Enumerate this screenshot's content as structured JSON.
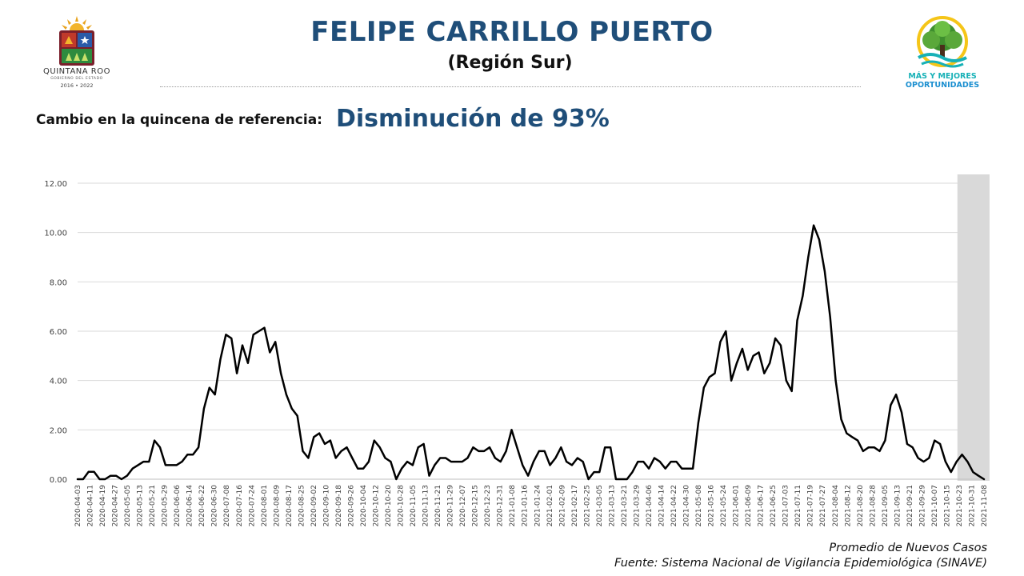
{
  "header": {
    "title": "FELIPE CARRILLO PUERTO",
    "subtitle": "(Región Sur)"
  },
  "logo_left": {
    "name": "QUINTANA ROO",
    "sub": "GOBIERNO DEL ESTADO",
    "years": "2016 • 2022"
  },
  "logo_right": {
    "line1": "MÁS Y MEJORES",
    "line2": "OPORTUNIDADES"
  },
  "summary": {
    "label": "Cambio en la quincena de referencia:",
    "value": "Disminución de 93%"
  },
  "colors": {
    "title": "#1f4e79",
    "line": "#000000",
    "highlight_band": "#d9d9d9",
    "grid": "#d9d9d9"
  },
  "footer": {
    "series_label": "Promedio de Nuevos Casos",
    "source": "Fuente: Sistema Nacional de Vigilancia Epidemiológica (SINAVE)"
  },
  "chart_data": {
    "type": "line",
    "title": "",
    "xlabel": "",
    "ylabel": "",
    "ylim": [
      0,
      12
    ],
    "yticks": [
      "0.00",
      "2.00",
      "4.00",
      "6.00",
      "8.00",
      "10.00",
      "12.00"
    ],
    "grid": true,
    "highlight_range": [
      "2021-10-26",
      "2021-11-09"
    ],
    "xtick_labels": [
      "2020-04-03",
      "2020-04-11",
      "2020-04-19",
      "2020-04-27",
      "2020-05-05",
      "2020-05-13",
      "2020-05-21",
      "2020-05-29",
      "2020-06-06",
      "2020-06-14",
      "2020-06-22",
      "2020-06-30",
      "2020-07-08",
      "2020-07-16",
      "2020-07-24",
      "2020-08-01",
      "2020-08-09",
      "2020-08-17",
      "2020-08-25",
      "2020-09-02",
      "2020-09-10",
      "2020-09-18",
      "2020-09-26",
      "2020-10-04",
      "2020-10-12",
      "2020-10-20",
      "2020-10-28",
      "2020-11-05",
      "2020-11-13",
      "2020-11-21",
      "2020-11-29",
      "2020-12-07",
      "2020-12-15",
      "2020-12-23",
      "2020-12-31",
      "2021-01-08",
      "2021-01-16",
      "2021-01-24",
      "2021-02-01",
      "2021-02-09",
      "2021-02-17",
      "2021-02-25",
      "2021-03-05",
      "2021-03-13",
      "2021-03-21",
      "2021-03-29",
      "2021-04-06",
      "2021-04-14",
      "2021-04-22",
      "2021-04-30",
      "2021-05-08",
      "2021-05-16",
      "2021-05-24",
      "2021-06-01",
      "2021-06-09",
      "2021-06-17",
      "2021-06-25",
      "2021-07-03",
      "2021-07-11",
      "2021-07-19",
      "2021-07-27",
      "2021-08-04",
      "2021-08-12",
      "2021-08-20",
      "2021-08-28",
      "2021-09-05",
      "2021-09-13",
      "2021-09-21",
      "2021-09-29",
      "2021-10-07",
      "2021-10-15",
      "2021-10-23",
      "2021-10-31",
      "2021-11-08"
    ],
    "series": [
      {
        "values": [
          0.0,
          0.0,
          0.3,
          0.3,
          0.0,
          0.0,
          0.14,
          0.14,
          0.0,
          0.14,
          0.43,
          0.57,
          0.71,
          0.71,
          1.57,
          1.29,
          0.57,
          0.57,
          0.57,
          0.71,
          1.0,
          1.0,
          1.29,
          2.86,
          3.71,
          3.43,
          4.86,
          5.86,
          5.71,
          4.29,
          5.43,
          4.71,
          5.86,
          6.0,
          6.14,
          5.14,
          5.57,
          4.29,
          3.43,
          2.86,
          2.57,
          1.14,
          0.86,
          1.71,
          1.86,
          1.43,
          1.57,
          0.86,
          1.14,
          1.29,
          0.86,
          0.43,
          0.43,
          0.71,
          1.57,
          1.29,
          0.86,
          0.71,
          0.0,
          0.43,
          0.71,
          0.57,
          1.29,
          1.43,
          0.14,
          0.57,
          0.86,
          0.86,
          0.71,
          0.71,
          0.71,
          0.86,
          1.29,
          1.14,
          1.14,
          1.29,
          0.86,
          0.71,
          1.14,
          2.0,
          1.29,
          0.57,
          0.14,
          0.71,
          1.14,
          1.14,
          0.57,
          0.86,
          1.29,
          0.71,
          0.57,
          0.86,
          0.71,
          0.0,
          0.29,
          0.29,
          1.29,
          1.29,
          0.0,
          0.0,
          0.0,
          0.29,
          0.71,
          0.71,
          0.43,
          0.86,
          0.71,
          0.43,
          0.71,
          0.71,
          0.43,
          0.43,
          0.43,
          2.29,
          3.71,
          4.14,
          4.29,
          5.57,
          6.0,
          4.0,
          4.71,
          5.29,
          4.43,
          5.0,
          5.14,
          4.29,
          4.71,
          5.71,
          5.43,
          4.0,
          3.57,
          6.43,
          7.43,
          9.0,
          10.29,
          9.71,
          8.43,
          6.57,
          4.0,
          2.43,
          1.86,
          1.71,
          1.57,
          1.14,
          1.29,
          1.29,
          1.14,
          1.57,
          3.0,
          3.43,
          2.71,
          1.43,
          1.29,
          0.86,
          0.71,
          0.86,
          1.57,
          1.43,
          0.71,
          0.29,
          0.71,
          1.0,
          0.71,
          0.29,
          0.14,
          0.0
        ]
      }
    ]
  }
}
